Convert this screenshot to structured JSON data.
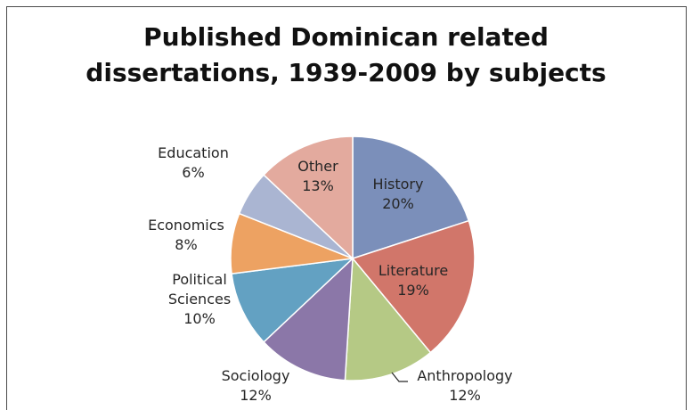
{
  "chart_data": {
    "type": "pie",
    "title_lines": [
      "Published Dominican related",
      "dissertations, 1939-2009 by subjects"
    ],
    "slices": [
      {
        "label": [
          "History"
        ],
        "value_label": "20%",
        "value": 20,
        "color": "#7b8fba"
      },
      {
        "label": [
          "Literature"
        ],
        "value_label": "19%",
        "value": 19,
        "color": "#d1766a"
      },
      {
        "label": [
          "Anthropology"
        ],
        "value_label": "12%",
        "value": 12,
        "color": "#b5c985"
      },
      {
        "label": [
          "Sociology"
        ],
        "value_label": "12%",
        "value": 12,
        "color": "#8b77a8"
      },
      {
        "label": [
          "Political",
          "Sciences"
        ],
        "value_label": "10%",
        "value": 10,
        "color": "#63a1c2"
      },
      {
        "label": [
          "Economics"
        ],
        "value_label": "8%",
        "value": 8,
        "color": "#eda262"
      },
      {
        "label": [
          "Education"
        ],
        "value_label": "6%",
        "value": 6,
        "color": "#aab5d2"
      },
      {
        "label": [
          "Other"
        ],
        "value_label": "13%",
        "value": 13,
        "color": "#e3aa9e"
      }
    ],
    "legend": "none",
    "label_placement": "mixed inside/outside"
  }
}
